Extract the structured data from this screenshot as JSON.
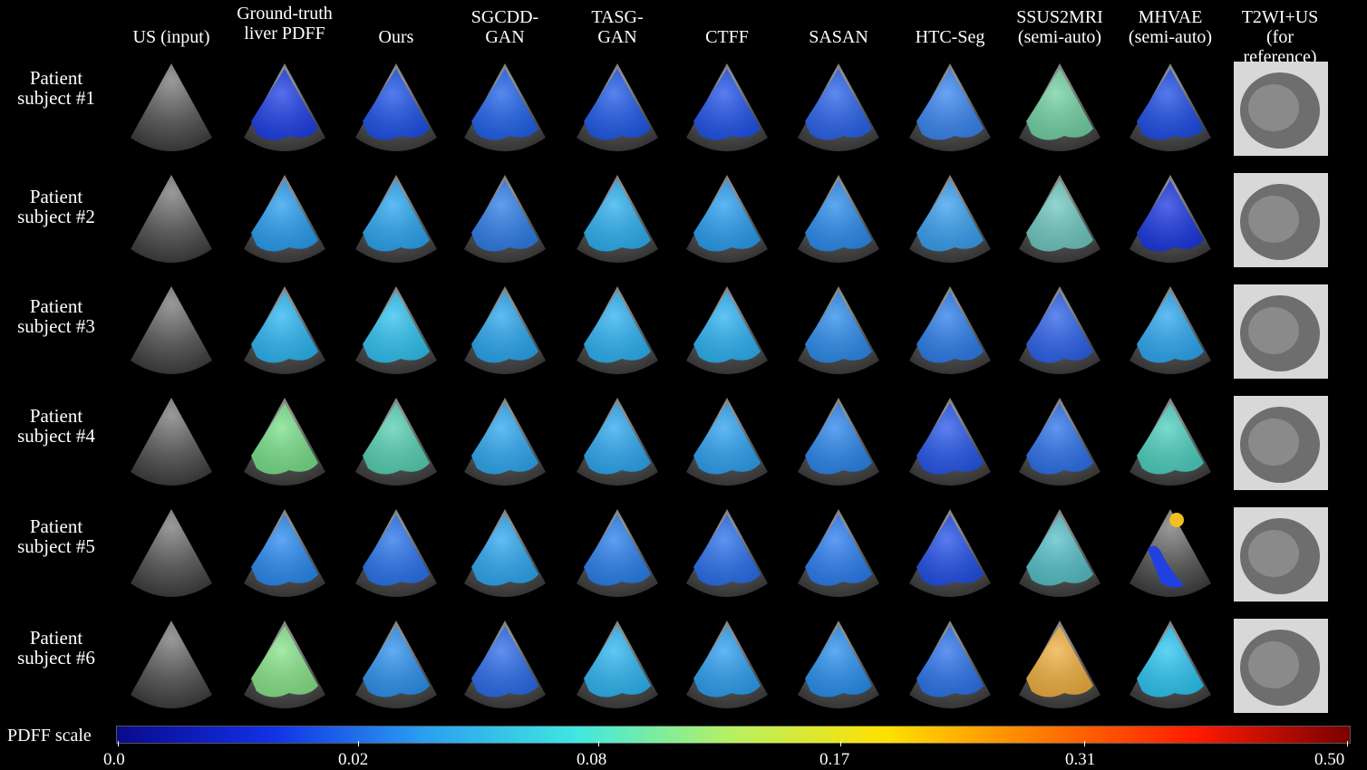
{
  "figure": {
    "columns": [
      "US (input)",
      "Ground-truth\nliver PDFF",
      "Ours",
      "SGCDD-\nGAN",
      "TASG-\nGAN",
      "CTFF",
      "SASAN",
      "HTC-Seg",
      "SSUS2MRI\n(semi-auto)",
      "MHVAE\n(semi-auto)",
      "T2WI+US (for\nreference)"
    ],
    "rows": [
      "Patient\nsubject #1",
      "Patient\nsubject #2",
      "Patient\nsubject #3",
      "Patient\nsubject #4",
      "Patient\nsubject #5",
      "Patient\nsubject #6"
    ],
    "panels": [
      [
        "ultrasound",
        "#1f3fe6",
        "#1d52e8",
        "#2062ea",
        "#1f5ae8",
        "#2153ea",
        "#2a63ea",
        "#3a86f0",
        "#73d2a4",
        "#1e4ee6",
        "mri"
      ],
      [
        "ultrasound",
        "#2a9ef0",
        "#2ba6f0",
        "#2f7ee8",
        "#2db0f0",
        "#2a9ef0",
        "#2b8cec",
        "#3aa0f0",
        "#6fc9c0",
        "#1c38e0",
        "mri"
      ],
      [
        "ultrasound",
        "#2cb6f2",
        "#30c2f0",
        "#2aa6ee",
        "#2db2f2",
        "#2db2f2",
        "#2d8cec",
        "#2d7eea",
        "#2e62ea",
        "#2ea8f0",
        "mri"
      ],
      [
        "ultrasound",
        "#7ae08a",
        "#58d0b4",
        "#2ea8f0",
        "#2ea8f0",
        "#2ea2f0",
        "#2b86ec",
        "#2757ea",
        "#2e72ea",
        "#4ed0c0",
        "mri"
      ],
      [
        "ultrasound",
        "#2a8af0",
        "#2a74ec",
        "#2ea8f0",
        "#2a80ec",
        "#2a70ec",
        "#2c7ef0",
        "#2250e8",
        "#57c0c8",
        "overlay",
        "mri"
      ],
      [
        "ultrasound",
        "#88e48a",
        "#2e92ee",
        "#2c6cea",
        "#2eb6f2",
        "#2ea0f0",
        "#2a90ee",
        "#2d74ec",
        "#f0b040",
        "#2ec6f2",
        "mri"
      ]
    ],
    "colorbar": {
      "label": "PDFF scale",
      "stops": [
        "#0a0a8c",
        "#1230e6",
        "#2aa0f0",
        "#40e8e0",
        "#b8f060",
        "#ffe000",
        "#ff7a00",
        "#ff1a00",
        "#7a0000"
      ],
      "ticks": [
        "0.0",
        "0.02",
        "0.08",
        "0.17",
        "0.31",
        "0.50"
      ]
    }
  }
}
